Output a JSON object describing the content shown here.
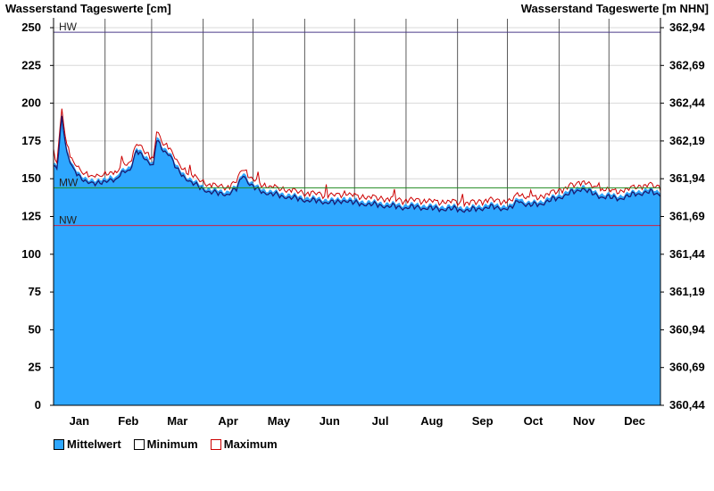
{
  "titles": {
    "left": "Wasserstand Tageswerte [cm]",
    "right": "Wasserstand Tageswerte [m NHN]"
  },
  "legend": {
    "mean": "Mittelwert",
    "min": "Minimum",
    "max": "Maximum"
  },
  "colors": {
    "fill": "#2ea7ff",
    "min_line": "#1a1a70",
    "max_line": "#cc0000",
    "hw_line": "#4b3b8a",
    "mw_line": "#1e8a1e",
    "nw_line": "#cc2244",
    "grid": "#d8d8d8",
    "month_sep": "#333333"
  },
  "chart_data": {
    "type": "area",
    "x_months": [
      "Jan",
      "Feb",
      "Mar",
      "Apr",
      "May",
      "Jun",
      "Jul",
      "Aug",
      "Sep",
      "Oct",
      "Nov",
      "Dec"
    ],
    "ylim": [
      0,
      250
    ],
    "y_ticks_left": [
      "0",
      "25",
      "50",
      "75",
      "100",
      "125",
      "150",
      "175",
      "200",
      "225",
      "250"
    ],
    "y_ticks_right": [
      "360,44",
      "360,69",
      "360,94",
      "361,19",
      "361,44",
      "361,69",
      "361,94",
      "362,19",
      "362,44",
      "362,69",
      "362,94"
    ],
    "reference_lines": [
      {
        "name": "HW",
        "value": 247
      },
      {
        "name": "MW",
        "value": 144
      },
      {
        "name": "NW",
        "value": 119
      }
    ],
    "series": [
      {
        "name": "Mittelwert",
        "points": [
          [
            0,
            160
          ],
          [
            2,
            158
          ],
          [
            5,
            192
          ],
          [
            8,
            170
          ],
          [
            12,
            158
          ],
          [
            16,
            152
          ],
          [
            22,
            150
          ],
          [
            26,
            148
          ],
          [
            30,
            150
          ],
          [
            34,
            152
          ],
          [
            38,
            150
          ],
          [
            40,
            155
          ],
          [
            44,
            158
          ],
          [
            46,
            158
          ],
          [
            50,
            170
          ],
          [
            56,
            165
          ],
          [
            60,
            160
          ],
          [
            62,
            178
          ],
          [
            65,
            172
          ],
          [
            70,
            168
          ],
          [
            74,
            158
          ],
          [
            80,
            152
          ],
          [
            85,
            148
          ],
          [
            90,
            145
          ],
          [
            95,
            143
          ],
          [
            100,
            142
          ],
          [
            105,
            142
          ],
          [
            110,
            145
          ],
          [
            112,
            150
          ],
          [
            114,
            155
          ],
          [
            116,
            152
          ],
          [
            118,
            148
          ],
          [
            122,
            145
          ],
          [
            127,
            143
          ],
          [
            130,
            142
          ],
          [
            140,
            140
          ],
          [
            150,
            138
          ],
          [
            160,
            137
          ],
          [
            170,
            136
          ],
          [
            175,
            138
          ],
          [
            180,
            136
          ],
          [
            190,
            135
          ],
          [
            200,
            134
          ],
          [
            210,
            133
          ],
          [
            220,
            133
          ],
          [
            230,
            132
          ],
          [
            240,
            132
          ],
          [
            250,
            131
          ],
          [
            255,
            132
          ],
          [
            260,
            133
          ],
          [
            265,
            133
          ],
          [
            275,
            132
          ],
          [
            278,
            136
          ],
          [
            280,
            138
          ],
          [
            285,
            134
          ],
          [
            290,
            135
          ],
          [
            295,
            136
          ],
          [
            300,
            138
          ],
          [
            305,
            140
          ],
          [
            310,
            142
          ],
          [
            315,
            144
          ],
          [
            318,
            146
          ],
          [
            322,
            143
          ],
          [
            330,
            140
          ],
          [
            340,
            139
          ],
          [
            345,
            140
          ],
          [
            350,
            142
          ],
          [
            358,
            143
          ],
          [
            365,
            142
          ]
        ]
      },
      {
        "name": "Minimum",
        "points": [
          [
            0,
            158
          ],
          [
            365,
            140
          ]
        ]
      },
      {
        "name": "Maximum",
        "points": [
          [
            0,
            164
          ],
          [
            365,
            146
          ]
        ]
      }
    ]
  }
}
